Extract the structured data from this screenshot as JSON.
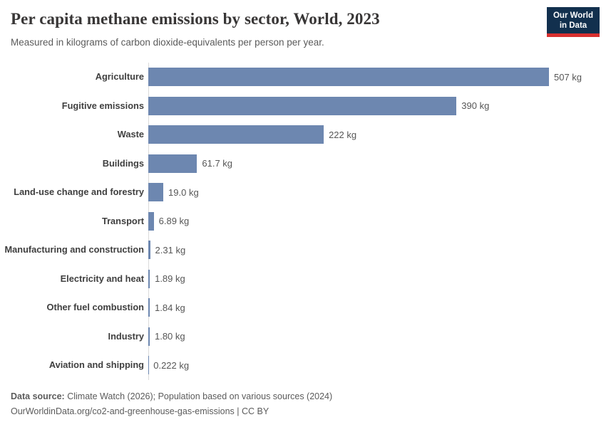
{
  "header": {
    "title": "Per capita methane emissions by sector, World, 2023",
    "subtitle": "Measured in kilograms of carbon dioxide-equivalents per person per year.",
    "logo": {
      "line1": "Our World",
      "line2": "in Data"
    }
  },
  "chart_data": {
    "type": "bar",
    "orientation": "horizontal",
    "title": "Per capita methane emissions by sector, World, 2023",
    "subtitle": "Measured in kilograms of carbon dioxide-equivalents per person per year.",
    "unit": "kg",
    "categories": [
      "Agriculture",
      "Fugitive emissions",
      "Waste",
      "Buildings",
      "Land-use change and forestry",
      "Transport",
      "Manufacturing and construction",
      "Electricity and heat",
      "Other fuel combustion",
      "Industry",
      "Aviation and shipping"
    ],
    "values": [
      507,
      390,
      222,
      61.7,
      19.0,
      6.89,
      2.31,
      1.89,
      1.84,
      1.8,
      0.222
    ],
    "value_labels": [
      "507 kg",
      "390 kg",
      "222 kg",
      "61.7 kg",
      "19.0 kg",
      "6.89 kg",
      "2.31 kg",
      "1.89 kg",
      "1.84 kg",
      "1.80 kg",
      "0.222 kg"
    ],
    "xlim": [
      0,
      507
    ],
    "grid": false,
    "legend": false,
    "bar_color": "#6d87b0",
    "axis_line_color": "#dadada"
  },
  "footer": {
    "source_label": "Data source:",
    "source_text": "Climate Watch (2026); Population based on various sources (2024)",
    "citation": "OurWorldinData.org/co2-and-greenhouse-gas-emissions | CC BY"
  },
  "colors": {
    "bar": "#6d87b0",
    "logo_navy": "#12304e",
    "logo_red": "#d8302f",
    "title_text": "#383636",
    "muted_text": "#5b5b5b"
  }
}
